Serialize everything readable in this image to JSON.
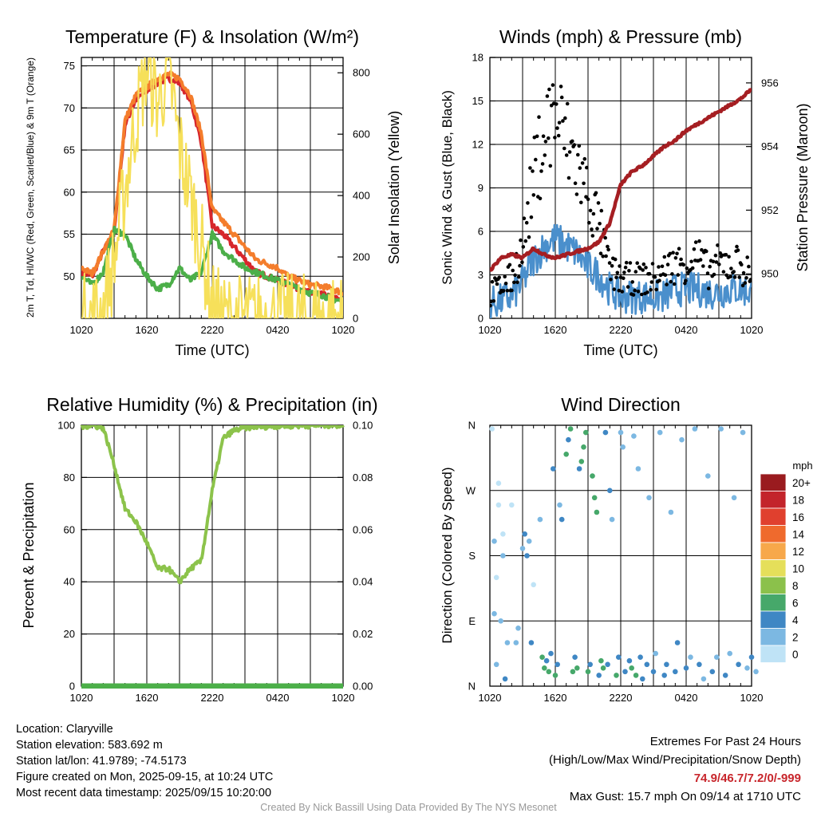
{
  "chart_data": [
    {
      "type": "line",
      "title": "Temperature (F) & Insolation (W/m²)",
      "xlabel": "Time (UTC)",
      "ylabel": "2m T, Td, HI/WC (Red, Green, Scarlet/Blue) & 9m T (Orange)",
      "y2label": "Solar Insolation (Yellow)",
      "x_ticks": [
        "1020",
        "1620",
        "2220",
        "0420",
        "1020"
      ],
      "y_ticks": [
        50,
        55,
        60,
        65,
        70,
        75
      ],
      "y2_ticks": [
        0,
        200,
        400,
        600,
        800
      ],
      "ylim": [
        45,
        76
      ],
      "y2lim": [
        0,
        850
      ],
      "x": [
        0,
        1,
        2,
        3,
        4,
        5,
        6,
        7,
        8,
        9,
        10,
        11,
        12,
        13,
        14,
        15,
        16,
        17,
        18,
        19,
        20,
        21,
        22,
        23,
        24
      ],
      "series": [
        {
          "name": "2m T",
          "color": "#d7262b",
          "axis": "left",
          "values": [
            50.5,
            50,
            53,
            55,
            68,
            71,
            72,
            73,
            73.5,
            73,
            71,
            66,
            56,
            55,
            53.5,
            52,
            50.5,
            50,
            49.5,
            49,
            48.5,
            48,
            47.8,
            47.5,
            47
          ]
        },
        {
          "name": "9m T",
          "color": "#f47d2c",
          "axis": "left",
          "values": [
            51,
            50.3,
            53,
            55.5,
            68.5,
            71.5,
            72.5,
            73.5,
            74,
            73.5,
            71.5,
            67,
            58,
            56.5,
            55,
            53.5,
            52,
            51.5,
            51,
            50,
            49.5,
            49,
            48.8,
            48.5,
            48
          ]
        },
        {
          "name": "Td",
          "color": "#4caf49",
          "axis": "left",
          "values": [
            50,
            49,
            50.5,
            55.5,
            55,
            52,
            50,
            48.5,
            49,
            51,
            49.5,
            50.5,
            55,
            53,
            52,
            51,
            50.5,
            50,
            49.5,
            49,
            48.5,
            48,
            47.8,
            47.3,
            47
          ]
        },
        {
          "name": "Solar Insolation",
          "color": "#f6e05a",
          "axis": "right",
          "values": [
            0,
            5,
            30,
            180,
            420,
            650,
            820,
            700,
            810,
            560,
            400,
            240,
            40,
            0,
            0,
            0,
            0,
            0,
            0,
            0,
            0,
            0,
            0,
            0,
            0
          ]
        }
      ]
    },
    {
      "type": "line",
      "title": "Winds (mph) & Pressure (mb)",
      "xlabel": "Time (UTC)",
      "ylabel": "Sonic Wind & Gust (Blue, Black)",
      "y2label": "Station Pressure (Maroon)",
      "x_ticks": [
        "1020",
        "1620",
        "2220",
        "0420",
        "1020"
      ],
      "y_ticks": [
        0,
        3,
        6,
        9,
        12,
        15,
        18
      ],
      "y2_ticks": [
        950,
        952,
        954,
        956
      ],
      "ylim": [
        0,
        18
      ],
      "y2lim": [
        948.6,
        956.8
      ],
      "x": [
        0,
        1,
        2,
        3,
        4,
        5,
        6,
        7,
        8,
        9,
        10,
        11,
        12,
        13,
        14,
        15,
        16,
        17,
        18,
        19,
        20,
        21,
        22,
        23,
        24
      ],
      "series": [
        {
          "name": "Sonic Wind",
          "color": "#4a8fcc",
          "axis": "left",
          "values": [
            1,
            1.2,
            1.5,
            2.5,
            4,
            5,
            5.5,
            5,
            4.5,
            3.5,
            3,
            2,
            1.5,
            1.5,
            1.5,
            1.5,
            1.5,
            2,
            2,
            2,
            1.8,
            1.8,
            2,
            2,
            1.8
          ]
        },
        {
          "name": "Gust",
          "color": "#000000",
          "axis": "left",
          "values": [
            1.5,
            2,
            2.5,
            4.5,
            9,
            12,
            13.5,
            11.5,
            10,
            8,
            6,
            3,
            2.5,
            2.5,
            2.5,
            2.5,
            3,
            3.5,
            3.5,
            4,
            3,
            3.5,
            3.5,
            3.5,
            2.5
          ]
        },
        {
          "name": "Station Pressure",
          "color": "#a51e22",
          "axis": "right",
          "values": [
            950.1,
            950.5,
            950.6,
            950.5,
            950.8,
            950.6,
            950.5,
            950.6,
            950.7,
            950.8,
            951,
            951.6,
            952.8,
            953.2,
            953.4,
            953.7,
            954,
            954.2,
            954.5,
            954.7,
            954.9,
            955.1,
            955.3,
            955.5,
            955.8
          ]
        }
      ]
    },
    {
      "type": "line",
      "title": "Relative Humidity (%) & Precipitation (in)",
      "xlabel": "",
      "ylabel": "Percent & Precipitation",
      "x_ticks": [
        "1020",
        "1620",
        "2220",
        "0420",
        "1020"
      ],
      "y_ticks": [
        0,
        20,
        40,
        60,
        80,
        100
      ],
      "y2_ticks": [
        "0.00",
        "0.02",
        "0.04",
        "0.06",
        "0.08",
        "0.10"
      ],
      "ylim": [
        0,
        100
      ],
      "y2lim": [
        0,
        0.1
      ],
      "x": [
        0,
        1,
        2,
        3,
        4,
        5,
        6,
        7,
        8,
        9,
        10,
        11,
        12,
        13,
        14,
        15,
        16,
        17,
        18,
        19,
        20,
        21,
        22,
        23,
        24
      ],
      "series": [
        {
          "name": "Relative Humidity",
          "color": "#8cc34b",
          "axis": "left",
          "values": [
            99.5,
            100,
            99,
            85,
            68,
            63,
            55,
            45,
            45,
            40,
            45,
            48,
            75,
            95,
            98,
            99,
            99.5,
            99.5,
            99.7,
            99.8,
            99.8,
            99.9,
            100,
            100,
            100
          ]
        },
        {
          "name": "Precipitation",
          "color": "#4caf49",
          "axis": "right",
          "values": [
            0,
            0,
            0,
            0,
            0,
            0,
            0,
            0,
            0,
            0,
            0,
            0,
            0,
            0,
            0,
            0,
            0,
            0,
            0,
            0,
            0,
            0,
            0,
            0,
            0
          ]
        }
      ]
    },
    {
      "type": "scatter",
      "title": "Wind Direction",
      "xlabel": "",
      "ylabel": "Direction (Colored By Speed)",
      "x_ticks": [
        "1020",
        "1620",
        "2220",
        "0420",
        "1020"
      ],
      "y_ticks": [
        "N",
        "E",
        "S",
        "W",
        "N"
      ],
      "ylim": [
        0,
        360
      ],
      "legend_title": "mph",
      "legend": [
        {
          "label": "0",
          "color": "#bfe3f6"
        },
        {
          "label": "2",
          "color": "#7cb8e2"
        },
        {
          "label": "4",
          "color": "#3f87c4"
        },
        {
          "label": "6",
          "color": "#46a86a"
        },
        {
          "label": "8",
          "color": "#8bc14b"
        },
        {
          "label": "10",
          "color": "#e5df5a"
        },
        {
          "label": "12",
          "color": "#f7a84a"
        },
        {
          "label": "14",
          "color": "#ef6a2d"
        },
        {
          "label": "16",
          "color": "#e0402e"
        },
        {
          "label": "18",
          "color": "#c3242b"
        },
        {
          "label": "20+",
          "color": "#9a1b1f"
        }
      ],
      "legend_placement": "right",
      "points": [
        [
          0.1,
          355,
          0
        ],
        [
          0.3,
          30,
          1
        ],
        [
          0.2,
          200,
          1
        ],
        [
          0.2,
          100,
          1
        ],
        [
          0.3,
          150,
          0
        ],
        [
          0.4,
          250,
          0
        ],
        [
          0.4,
          280,
          0
        ],
        [
          0.5,
          90,
          1
        ],
        [
          0.6,
          210,
          0
        ],
        [
          0.6,
          180,
          1
        ],
        [
          0.7,
          10,
          2
        ],
        [
          0.8,
          60,
          1
        ],
        [
          1.0,
          250,
          0
        ],
        [
          1.2,
          60,
          1
        ],
        [
          1.3,
          80,
          1
        ],
        [
          1.5,
          190,
          1
        ],
        [
          1.6,
          210,
          2
        ],
        [
          1.7,
          180,
          2
        ],
        [
          1.8,
          200,
          1
        ],
        [
          1.9,
          60,
          2
        ],
        [
          2.0,
          140,
          0
        ],
        [
          2.3,
          230,
          1
        ],
        [
          2.4,
          40,
          3
        ],
        [
          2.5,
          25,
          3
        ],
        [
          2.6,
          35,
          2
        ],
        [
          2.7,
          20,
          3
        ],
        [
          2.8,
          45,
          2
        ],
        [
          2.9,
          300,
          2
        ],
        [
          3.0,
          15,
          3
        ],
        [
          3.1,
          30,
          2
        ],
        [
          3.2,
          250,
          1
        ],
        [
          3.3,
          230,
          2
        ],
        [
          3.5,
          320,
          3
        ],
        [
          3.6,
          340,
          2
        ],
        [
          3.7,
          355,
          3
        ],
        [
          3.8,
          20,
          3
        ],
        [
          3.9,
          40,
          2
        ],
        [
          4.0,
          25,
          3
        ],
        [
          4.1,
          300,
          2
        ],
        [
          4.2,
          310,
          3
        ],
        [
          4.3,
          330,
          3
        ],
        [
          4.4,
          350,
          3
        ],
        [
          4.5,
          20,
          3
        ],
        [
          4.6,
          30,
          2
        ],
        [
          4.7,
          290,
          3
        ],
        [
          4.8,
          260,
          3
        ],
        [
          4.9,
          240,
          3
        ],
        [
          5.0,
          15,
          2
        ],
        [
          5.1,
          35,
          3
        ],
        [
          5.2,
          25,
          3
        ],
        [
          5.3,
          350,
          2
        ],
        [
          5.4,
          30,
          2
        ],
        [
          5.5,
          270,
          2
        ],
        [
          5.6,
          230,
          1
        ],
        [
          5.8,
          15,
          3
        ],
        [
          5.9,
          40,
          2
        ],
        [
          6.0,
          350,
          1
        ],
        [
          6.1,
          330,
          1
        ],
        [
          6.2,
          20,
          2
        ],
        [
          6.4,
          35,
          2
        ],
        [
          6.5,
          25,
          3
        ],
        [
          6.6,
          345,
          1
        ],
        [
          6.7,
          15,
          3
        ],
        [
          6.8,
          300,
          1
        ],
        [
          6.9,
          40,
          2
        ],
        [
          7.0,
          10,
          2
        ],
        [
          7.2,
          30,
          2
        ],
        [
          7.3,
          260,
          1
        ],
        [
          7.5,
          20,
          2
        ],
        [
          7.6,
          45,
          1
        ],
        [
          7.8,
          350,
          1
        ],
        [
          8.0,
          15,
          2
        ],
        [
          8.1,
          30,
          2
        ],
        [
          8.3,
          240,
          1
        ],
        [
          8.5,
          20,
          2
        ],
        [
          8.6,
          60,
          2
        ],
        [
          8.8,
          340,
          1
        ],
        [
          9.0,
          25,
          2
        ],
        [
          9.2,
          40,
          1
        ],
        [
          9.4,
          355,
          1
        ],
        [
          9.6,
          30,
          2
        ],
        [
          9.8,
          10,
          1
        ],
        [
          10.0,
          290,
          1
        ],
        [
          10.2,
          20,
          2
        ],
        [
          10.4,
          40,
          1
        ],
        [
          10.6,
          355,
          1
        ],
        [
          10.8,
          15,
          2
        ],
        [
          11.0,
          45,
          1
        ],
        [
          11.2,
          260,
          1
        ],
        [
          11.4,
          30,
          2
        ],
        [
          11.6,
          350,
          1
        ],
        [
          11.8,
          25,
          1
        ],
        [
          12.0,
          40,
          2
        ],
        [
          12.2,
          20,
          1
        ]
      ]
    }
  ],
  "info": {
    "location": "Location: Claryville",
    "elevation": "Station elevation: 583.692 m",
    "latlon": "Station lat/lon: 41.9789; -74.5173",
    "created": "Figure created on Mon, 2025-09-15, at 10:24 UTC",
    "recent": "Most recent data timestamp: 2025/09/15 10:20:00"
  },
  "extremes": {
    "heading": "Extremes For Past 24 Hours",
    "subheading": "(High/Low/Max Wind/Precipitation/Snow Depth)",
    "values": "74.9/46.7/7.2/0/-999",
    "gust": "Max Gust: 15.7 mph On 09/14 at 1710 UTC"
  },
  "credit": "Created By Nick Bassill Using Data Provided By The NYS Mesonet"
}
